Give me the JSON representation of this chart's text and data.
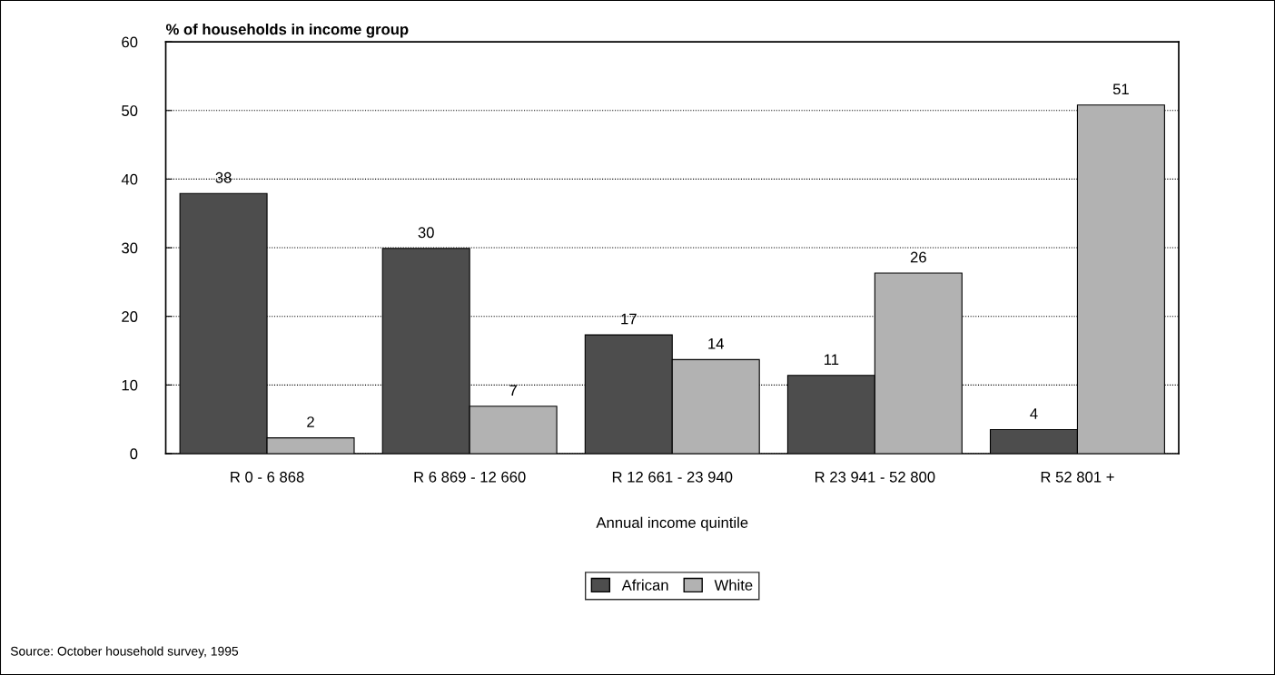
{
  "chart_data": {
    "type": "bar",
    "title": "% of households in income group",
    "xlabel": "Annual income quintile",
    "categories": [
      "R 0 - 6 868",
      "R 6 869 - 12 660",
      "R 12 661 - 23 940",
      "R 23 941 - 52 800",
      "R 52 801 +"
    ],
    "series": [
      {
        "name": "African",
        "color": "#4d4d4d",
        "values": [
          37.9,
          29.9,
          17.3,
          11.4,
          3.5
        ],
        "value_labels": [
          "38",
          "30",
          "17",
          "11",
          "4"
        ]
      },
      {
        "name": "White",
        "color": "#b2b2b2",
        "values": [
          2.3,
          6.9,
          13.7,
          26.3,
          50.8
        ],
        "value_labels": [
          "2",
          "7",
          "14",
          "26",
          "51"
        ]
      }
    ],
    "ylim": [
      0,
      60
    ],
    "yticks": [
      0,
      10,
      20,
      30,
      40,
      50,
      60
    ],
    "grid": "y",
    "legend": "bottom",
    "annotations": [
      "Source: October household survey, 1995"
    ]
  }
}
